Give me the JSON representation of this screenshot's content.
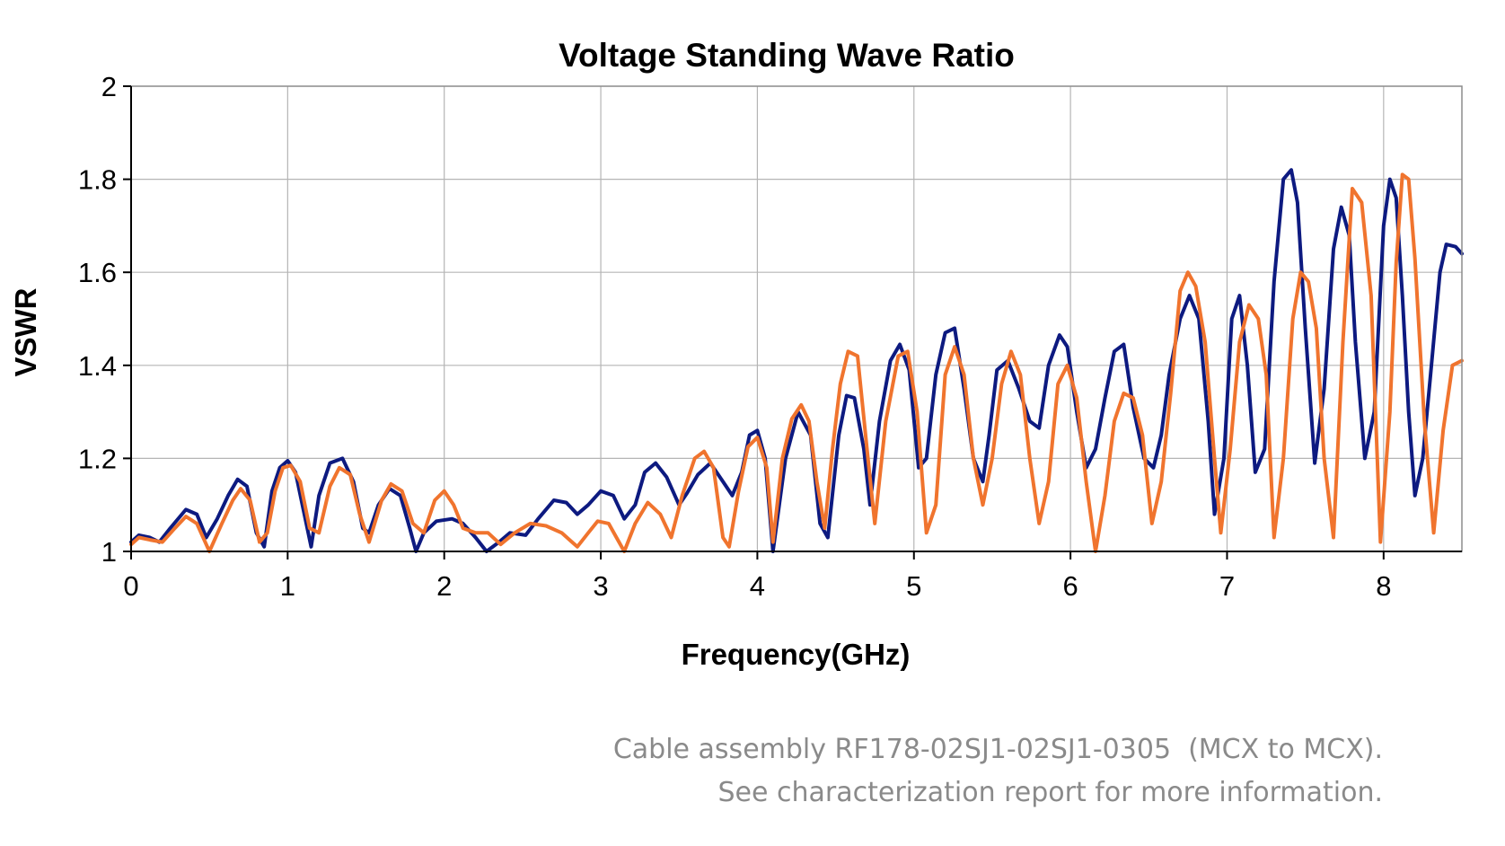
{
  "chart_data": {
    "type": "line",
    "title": "Voltage Standing Wave Ratio",
    "xlabel": "Frequency(GHz)",
    "ylabel": "VSWR",
    "xlim": [
      0,
      8.5
    ],
    "ylim": [
      1,
      2
    ],
    "x_ticks": [
      0,
      1,
      2,
      3,
      4,
      5,
      6,
      7,
      8
    ],
    "y_ticks": [
      1,
      1.2,
      1.4,
      1.6,
      1.8,
      2
    ],
    "grid": true,
    "legend": "none",
    "series": [
      {
        "name": "navy",
        "color": "#0d1a80",
        "x": [
          0,
          0.05,
          0.12,
          0.18,
          0.25,
          0.35,
          0.42,
          0.48,
          0.55,
          0.62,
          0.68,
          0.74,
          0.8,
          0.85,
          0.9,
          0.95,
          1.0,
          1.05,
          1.1,
          1.15,
          1.2,
          1.27,
          1.35,
          1.42,
          1.48,
          1.52,
          1.58,
          1.65,
          1.72,
          1.78,
          1.82,
          1.87,
          1.95,
          2.05,
          2.12,
          2.2,
          2.27,
          2.35,
          2.42,
          2.52,
          2.6,
          2.7,
          2.78,
          2.85,
          2.92,
          3.0,
          3.08,
          3.15,
          3.22,
          3.28,
          3.35,
          3.42,
          3.5,
          3.55,
          3.62,
          3.7,
          3.78,
          3.84,
          3.9,
          3.95,
          4.0,
          4.05,
          4.1,
          4.18,
          4.26,
          4.34,
          4.4,
          4.45,
          4.52,
          4.57,
          4.62,
          4.68,
          4.72,
          4.78,
          4.85,
          4.91,
          4.97,
          5.03,
          5.08,
          5.14,
          5.2,
          5.26,
          5.32,
          5.38,
          5.44,
          5.48,
          5.53,
          5.6,
          5.67,
          5.74,
          5.8,
          5.86,
          5.93,
          5.98,
          6.04,
          6.1,
          6.16,
          6.22,
          6.28,
          6.34,
          6.4,
          6.47,
          6.53,
          6.58,
          6.63,
          6.7,
          6.76,
          6.82,
          6.88,
          6.92,
          6.98,
          7.03,
          7.08,
          7.13,
          7.18,
          7.24,
          7.3,
          7.36,
          7.41,
          7.45,
          7.5,
          7.56,
          7.62,
          7.68,
          7.73,
          7.78,
          7.82,
          7.88,
          7.94,
          8.0,
          8.04,
          8.08,
          8.12,
          8.16,
          8.2,
          8.25,
          8.3,
          8.36,
          8.4,
          8.46,
          8.5
        ],
        "values": [
          1.02,
          1.035,
          1.03,
          1.02,
          1.05,
          1.09,
          1.08,
          1.03,
          1.07,
          1.12,
          1.155,
          1.14,
          1.04,
          1.01,
          1.13,
          1.18,
          1.195,
          1.17,
          1.09,
          1.01,
          1.12,
          1.19,
          1.2,
          1.15,
          1.05,
          1.04,
          1.1,
          1.135,
          1.12,
          1.05,
          1.0,
          1.04,
          1.065,
          1.07,
          1.06,
          1.03,
          1.0,
          1.02,
          1.04,
          1.035,
          1.07,
          1.11,
          1.105,
          1.08,
          1.1,
          1.13,
          1.12,
          1.07,
          1.1,
          1.17,
          1.19,
          1.16,
          1.1,
          1.125,
          1.165,
          1.19,
          1.15,
          1.12,
          1.17,
          1.25,
          1.26,
          1.2,
          1.0,
          1.2,
          1.3,
          1.25,
          1.06,
          1.03,
          1.25,
          1.335,
          1.33,
          1.22,
          1.1,
          1.28,
          1.41,
          1.445,
          1.39,
          1.18,
          1.2,
          1.38,
          1.47,
          1.48,
          1.35,
          1.2,
          1.15,
          1.25,
          1.39,
          1.41,
          1.35,
          1.28,
          1.265,
          1.4,
          1.465,
          1.44,
          1.3,
          1.18,
          1.22,
          1.33,
          1.43,
          1.445,
          1.31,
          1.2,
          1.18,
          1.25,
          1.38,
          1.5,
          1.55,
          1.5,
          1.28,
          1.08,
          1.2,
          1.5,
          1.55,
          1.4,
          1.17,
          1.22,
          1.58,
          1.8,
          1.82,
          1.75,
          1.48,
          1.19,
          1.35,
          1.65,
          1.74,
          1.68,
          1.45,
          1.2,
          1.3,
          1.7,
          1.8,
          1.76,
          1.55,
          1.3,
          1.12,
          1.2,
          1.38,
          1.6,
          1.66,
          1.655,
          1.64
        ]
      },
      {
        "name": "orange",
        "color": "#f0742e",
        "x": [
          0,
          0.05,
          0.12,
          0.2,
          0.28,
          0.35,
          0.42,
          0.5,
          0.58,
          0.65,
          0.7,
          0.76,
          0.82,
          0.87,
          0.92,
          0.97,
          1.02,
          1.08,
          1.14,
          1.2,
          1.27,
          1.33,
          1.4,
          1.46,
          1.52,
          1.6,
          1.66,
          1.73,
          1.8,
          1.87,
          1.94,
          2.0,
          2.06,
          2.12,
          2.2,
          2.28,
          2.36,
          2.45,
          2.55,
          2.65,
          2.75,
          2.85,
          2.92,
          2.98,
          3.05,
          3.1,
          3.15,
          3.22,
          3.3,
          3.38,
          3.45,
          3.52,
          3.6,
          3.66,
          3.72,
          3.78,
          3.82,
          3.88,
          3.94,
          4.0,
          4.06,
          4.1,
          4.16,
          4.22,
          4.28,
          4.33,
          4.38,
          4.43,
          4.48,
          4.53,
          4.58,
          4.64,
          4.7,
          4.75,
          4.82,
          4.9,
          4.96,
          5.02,
          5.08,
          5.14,
          5.2,
          5.26,
          5.32,
          5.38,
          5.44,
          5.5,
          5.56,
          5.62,
          5.68,
          5.74,
          5.8,
          5.86,
          5.92,
          5.98,
          6.04,
          6.1,
          6.16,
          6.22,
          6.28,
          6.34,
          6.4,
          6.46,
          6.52,
          6.58,
          6.64,
          6.7,
          6.75,
          6.8,
          6.86,
          6.92,
          6.96,
          7.02,
          7.08,
          7.14,
          7.2,
          7.25,
          7.3,
          7.36,
          7.42,
          7.47,
          7.52,
          7.57,
          7.62,
          7.68,
          7.74,
          7.8,
          7.86,
          7.92,
          7.98,
          8.04,
          8.08,
          8.12,
          8.16,
          8.2,
          8.26,
          8.32,
          8.38,
          8.44,
          8.5
        ],
        "values": [
          1.015,
          1.03,
          1.025,
          1.02,
          1.05,
          1.075,
          1.06,
          1.0,
          1.06,
          1.11,
          1.135,
          1.11,
          1.02,
          1.04,
          1.13,
          1.18,
          1.185,
          1.15,
          1.05,
          1.04,
          1.14,
          1.18,
          1.165,
          1.08,
          1.02,
          1.11,
          1.145,
          1.13,
          1.06,
          1.04,
          1.11,
          1.13,
          1.1,
          1.05,
          1.04,
          1.04,
          1.015,
          1.04,
          1.06,
          1.055,
          1.04,
          1.01,
          1.04,
          1.065,
          1.06,
          1.03,
          1.0,
          1.06,
          1.105,
          1.08,
          1.03,
          1.12,
          1.2,
          1.215,
          1.18,
          1.03,
          1.01,
          1.13,
          1.225,
          1.245,
          1.18,
          1.02,
          1.2,
          1.285,
          1.315,
          1.28,
          1.15,
          1.05,
          1.22,
          1.36,
          1.43,
          1.42,
          1.22,
          1.06,
          1.28,
          1.42,
          1.43,
          1.3,
          1.04,
          1.1,
          1.38,
          1.44,
          1.38,
          1.2,
          1.1,
          1.2,
          1.36,
          1.43,
          1.38,
          1.2,
          1.06,
          1.15,
          1.36,
          1.4,
          1.33,
          1.15,
          1.0,
          1.12,
          1.28,
          1.34,
          1.33,
          1.25,
          1.06,
          1.15,
          1.34,
          1.56,
          1.6,
          1.57,
          1.45,
          1.2,
          1.04,
          1.22,
          1.45,
          1.53,
          1.5,
          1.38,
          1.03,
          1.2,
          1.5,
          1.6,
          1.58,
          1.48,
          1.2,
          1.03,
          1.45,
          1.78,
          1.75,
          1.55,
          1.02,
          1.3,
          1.62,
          1.81,
          1.8,
          1.63,
          1.28,
          1.04,
          1.26,
          1.4,
          1.41
        ]
      }
    ]
  },
  "caption": {
    "line1": "Cable assembly RF178-02SJ1-02SJ1-0305  (MCX to MCX).",
    "line2": "See characterization report for more information."
  }
}
